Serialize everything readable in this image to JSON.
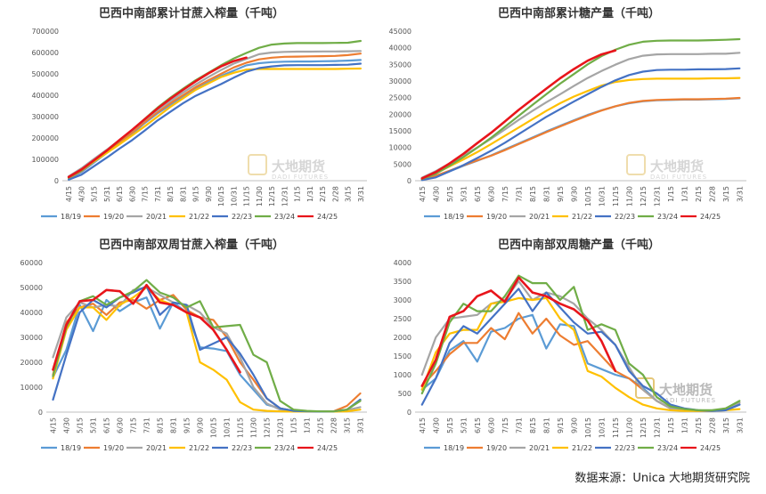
{
  "x_categories": [
    "4/15",
    "4/30",
    "5/15",
    "5/31",
    "6/15",
    "6/30",
    "7/15",
    "7/31",
    "8/15",
    "8/31",
    "9/15",
    "9/30",
    "10/15",
    "10/31",
    "11/15",
    "11/30",
    "12/15",
    "12/31",
    "1/15",
    "1/31",
    "2/15",
    "2/28",
    "3/15",
    "3/31"
  ],
  "legend": [
    "18/19",
    "19/20",
    "20/21",
    "21/22",
    "22/23",
    "23/24",
    "24/25"
  ],
  "colors": {
    "18/19": "#5b9bd5",
    "19/20": "#ed7d31",
    "20/21": "#a5a5a5",
    "21/22": "#ffc000",
    "22/23": "#4472c4",
    "23/24": "#70ad47",
    "24/25": "#e8151b"
  },
  "watermark": {
    "cn": "大地期货",
    "en": "DADI FUTURES"
  },
  "footer": "数据来源：Unica  大地期货研究院",
  "chart_data": [
    {
      "id": "cum_cane",
      "type": "line",
      "title": "巴西中南部累计甘蔗入榨量（千吨）",
      "ylim": [
        0,
        700000
      ],
      "yticks": [
        0,
        100000,
        200000,
        300000,
        400000,
        500000,
        600000,
        700000
      ],
      "series": [
        {
          "name": "18/19",
          "values": [
            10000,
            40000,
            85000,
            130000,
            175000,
            220000,
            270000,
            315000,
            355000,
            395000,
            430000,
            460000,
            490000,
            515000,
            540000,
            550000,
            555000,
            557000,
            558000,
            558000,
            559000,
            560000,
            562000,
            565000
          ]
        },
        {
          "name": "19/20",
          "values": [
            12000,
            45000,
            90000,
            135000,
            180000,
            225000,
            275000,
            320000,
            362000,
            400000,
            438000,
            470000,
            500000,
            530000,
            552000,
            568000,
            576000,
            580000,
            581000,
            582000,
            583000,
            584000,
            588000,
            595000
          ]
        },
        {
          "name": "20/21",
          "values": [
            20000,
            58000,
            102000,
            145000,
            190000,
            235000,
            285000,
            330000,
            372000,
            412000,
            450000,
            485000,
            518000,
            548000,
            570000,
            592000,
            600000,
            603000,
            604000,
            604000,
            605000,
            605000,
            606000,
            607000
          ]
        },
        {
          "name": "21/22",
          "values": [
            13000,
            48000,
            90000,
            130000,
            170000,
            212000,
            255000,
            300000,
            345000,
            385000,
            425000,
            455000,
            485000,
            505000,
            520000,
            523000,
            523000,
            523000,
            523000,
            523000,
            523000,
            523000,
            524000,
            525000
          ]
        },
        {
          "name": "22/23",
          "values": [
            5000,
            28000,
            68000,
            108000,
            150000,
            190000,
            235000,
            282000,
            322000,
            362000,
            397000,
            425000,
            452000,
            482000,
            510000,
            527000,
            535000,
            540000,
            541000,
            541000,
            541000,
            542000,
            543000,
            548000
          ]
        },
        {
          "name": "23/24",
          "values": [
            14000,
            48000,
            94000,
            140000,
            187000,
            238000,
            290000,
            342000,
            388000,
            430000,
            470000,
            505000,
            540000,
            572000,
            598000,
            622000,
            637000,
            642000,
            644000,
            644000,
            644000,
            645000,
            646000,
            654000
          ]
        },
        {
          "name": "24/25",
          "values": [
            17000,
            52000,
            96000,
            141000,
            190000,
            238000,
            288000,
            338000,
            383000,
            425000,
            465000,
            502000,
            535000,
            560000,
            576000
          ]
        }
      ]
    },
    {
      "id": "cum_sugar",
      "type": "line",
      "title": "巴西中南部累计糖产量（千吨）",
      "ylim": [
        0,
        45000
      ],
      "yticks": [
        0,
        5000,
        10000,
        15000,
        20000,
        25000,
        30000,
        35000,
        40000,
        45000
      ],
      "series": [
        {
          "name": "18/19",
          "values": [
            300,
            1200,
            2800,
            4500,
            6000,
            7600,
            9400,
            11200,
            13000,
            14800,
            16500,
            18200,
            19800,
            21200,
            22400,
            23300,
            23900,
            24200,
            24300,
            24400,
            24400,
            24500,
            24600,
            24800
          ]
        },
        {
          "name": "19/20",
          "values": [
            400,
            1500,
            3000,
            4600,
            6100,
            7500,
            9200,
            11000,
            12800,
            14600,
            16300,
            18000,
            19600,
            21100,
            22400,
            23400,
            24000,
            24300,
            24400,
            24500,
            24500,
            24600,
            24700,
            24900
          ]
        },
        {
          "name": "20/21",
          "values": [
            900,
            2900,
            5200,
            7500,
            10000,
            12600,
            15400,
            18300,
            21000,
            23600,
            26000,
            28500,
            30900,
            33000,
            34900,
            36600,
            37600,
            38000,
            38100,
            38100,
            38100,
            38200,
            38200,
            38500
          ]
        },
        {
          "name": "21/22",
          "values": [
            600,
            2200,
            4300,
            6400,
            8600,
            11000,
            13500,
            16000,
            18500,
            21000,
            23300,
            25300,
            27000,
            28600,
            29700,
            30300,
            30600,
            30700,
            30700,
            30700,
            30700,
            30800,
            30800,
            30900
          ]
        },
        {
          "name": "22/23",
          "values": [
            200,
            1000,
            2800,
            4700,
            6800,
            9000,
            11400,
            14000,
            16600,
            19200,
            21500,
            23800,
            26000,
            28200,
            30200,
            31800,
            32800,
            33300,
            33400,
            33400,
            33500,
            33500,
            33600,
            33800
          ]
        },
        {
          "name": "23/24",
          "values": [
            500,
            2100,
            4500,
            7100,
            9900,
            12900,
            16200,
            19500,
            22800,
            26000,
            29200,
            32100,
            35000,
            37500,
            39400,
            40900,
            41800,
            42100,
            42200,
            42200,
            42200,
            42300,
            42400,
            42600
          ]
        },
        {
          "name": "24/25",
          "values": [
            700,
            2600,
            5200,
            8100,
            11300,
            14400,
            17800,
            21300,
            24500,
            27700,
            30800,
            33600,
            36100,
            38000,
            39200
          ]
        }
      ]
    },
    {
      "id": "bi_cane",
      "type": "line",
      "title": "巴西中南部双周甘蔗入榨量（千吨）",
      "ylim": [
        0,
        60000
      ],
      "yticks": [
        0,
        10000,
        20000,
        30000,
        40000,
        50000,
        60000
      ],
      "series": [
        {
          "name": "18/19",
          "values": [
            14000,
            25000,
            43000,
            32500,
            45000,
            40500,
            44000,
            46000,
            33500,
            44000,
            40000,
            26000,
            25500,
            24500,
            15000,
            9000,
            3000,
            1500,
            500,
            300,
            200,
            300,
            800,
            5000
          ]
        },
        {
          "name": "19/20",
          "values": [
            15000,
            36000,
            42000,
            43500,
            39000,
            44000,
            45000,
            41500,
            45000,
            47000,
            41000,
            38000,
            37000,
            30000,
            20000,
            13000,
            5500,
            1500,
            500,
            300,
            200,
            300,
            2500,
            7500
          ]
        },
        {
          "name": "20/21",
          "values": [
            22000,
            38000,
            44000,
            42000,
            43000,
            42500,
            49000,
            50000,
            47000,
            44000,
            43000,
            40000,
            34000,
            31500,
            22000,
            10000,
            3500,
            1000,
            400,
            200,
            200,
            300,
            800,
            2000
          ]
        },
        {
          "name": "21/22",
          "values": [
            13500,
            33000,
            42000,
            42000,
            37000,
            43000,
            46000,
            50000,
            45000,
            43000,
            40000,
            20000,
            17000,
            13000,
            4000,
            1000,
            500,
            300,
            200,
            200,
            200,
            200,
            300,
            1000
          ]
        },
        {
          "name": "22/23",
          "values": [
            5000,
            23000,
            40000,
            45000,
            42000,
            46000,
            48000,
            50500,
            39000,
            44000,
            43000,
            25000,
            27500,
            30000,
            23500,
            15000,
            5500,
            1500,
            500,
            300,
            200,
            300,
            1000,
            5000
          ]
        },
        {
          "name": "23/24",
          "values": [
            14500,
            34000,
            44500,
            46500,
            43000,
            46000,
            48500,
            53000,
            48000,
            46000,
            42000,
            44500,
            34000,
            34500,
            35000,
            23000,
            20000,
            4500,
            1000,
            500,
            300,
            300,
            1000,
            4500
          ]
        },
        {
          "name": "24/25",
          "values": [
            17000,
            35000,
            44500,
            45000,
            49000,
            48500,
            43500,
            51000,
            44000,
            43000,
            40000,
            38000,
            33000,
            25000,
            16000
          ]
        }
      ]
    },
    {
      "id": "bi_sugar",
      "type": "line",
      "title": "巴西中南部双周糖产量（千吨）",
      "ylim": [
        0,
        4000
      ],
      "yticks": [
        0,
        500,
        1000,
        1500,
        2000,
        2500,
        3000,
        3500,
        4000
      ],
      "series": [
        {
          "name": "18/19",
          "values": [
            600,
            900,
            1650,
            1900,
            1350,
            2150,
            2250,
            2500,
            2600,
            1700,
            2350,
            2300,
            1300,
            1150,
            1000,
            900,
            650,
            300,
            100,
            50,
            30,
            30,
            50,
            200
          ]
        },
        {
          "name": "19/20",
          "values": [
            700,
            1100,
            1550,
            1850,
            1850,
            2250,
            1950,
            2650,
            2100,
            2500,
            2050,
            1800,
            1900,
            1500,
            1100,
            900,
            600,
            300,
            100,
            50,
            30,
            30,
            100,
            250
          ]
        },
        {
          "name": "20/21",
          "values": [
            1000,
            2000,
            2500,
            2550,
            2600,
            2900,
            3000,
            3500,
            3000,
            3200,
            3100,
            2900,
            2500,
            2200,
            1800,
            1200,
            600,
            300,
            100,
            50,
            30,
            30,
            80,
            250
          ]
        },
        {
          "name": "21/22",
          "values": [
            600,
            1600,
            2100,
            2200,
            2200,
            2900,
            2950,
            3050,
            3000,
            3050,
            2500,
            2200,
            1100,
            950,
            650,
            400,
            200,
            100,
            50,
            30,
            30,
            30,
            50,
            80
          ]
        },
        {
          "name": "22/23",
          "values": [
            200,
            900,
            1850,
            2300,
            2100,
            2500,
            2900,
            3300,
            2700,
            3200,
            2800,
            2400,
            2100,
            2150,
            1800,
            1100,
            700,
            500,
            200,
            100,
            50,
            30,
            50,
            200
          ]
        },
        {
          "name": "23/24",
          "values": [
            500,
            1300,
            2400,
            2900,
            2700,
            2700,
            3100,
            3650,
            3450,
            3450,
            3000,
            3350,
            2200,
            2350,
            2200,
            1300,
            1000,
            400,
            150,
            80,
            50,
            50,
            100,
            300
          ]
        },
        {
          "name": "24/25",
          "values": [
            700,
            1400,
            2550,
            2700,
            3100,
            3250,
            2950,
            3600,
            3200,
            3100,
            2900,
            2750,
            2450,
            1900,
            1100
          ]
        }
      ]
    }
  ]
}
